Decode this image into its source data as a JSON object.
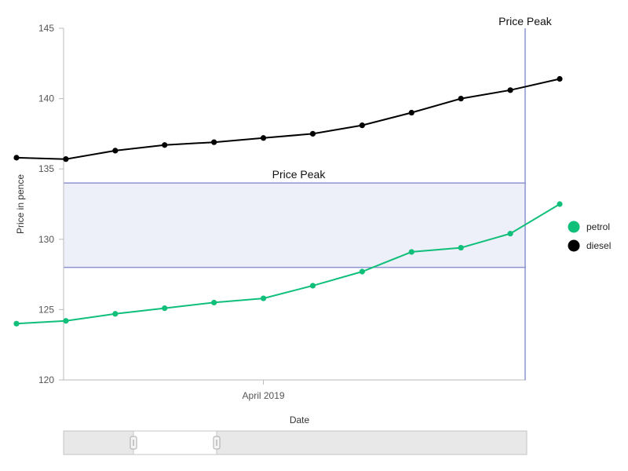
{
  "chart_data": {
    "type": "line",
    "xlabel": "Date",
    "ylabel": "Price in pence",
    "ylim": [
      120,
      145
    ],
    "y_ticks": [
      120,
      125,
      130,
      135,
      140,
      145
    ],
    "x_tick_label": "April 2019",
    "x_index_range": [
      0,
      11
    ],
    "x_tick_index": 5,
    "grid": false,
    "legend_position": "right",
    "series": [
      {
        "name": "petrol",
        "color": "#0fbf7a",
        "values": [
          124.0,
          124.2,
          124.7,
          125.1,
          125.5,
          125.8,
          126.7,
          127.7,
          129.1,
          129.4,
          130.4,
          132.5
        ]
      },
      {
        "name": "diesel",
        "color": "#000000",
        "values": [
          135.8,
          135.7,
          136.3,
          136.7,
          136.9,
          137.2,
          137.5,
          138.1,
          139.0,
          140.0,
          140.6,
          141.4
        ]
      }
    ],
    "annotations": [
      {
        "type": "band",
        "y_from": 128,
        "y_to": 134,
        "label": "Price Peak",
        "color": "#8e94d0"
      },
      {
        "type": "vline",
        "x_index": 10.3,
        "label": "Price Peak",
        "color": "#8e94d0"
      }
    ]
  },
  "scrollbar": {
    "label": "x-axis range selector"
  }
}
